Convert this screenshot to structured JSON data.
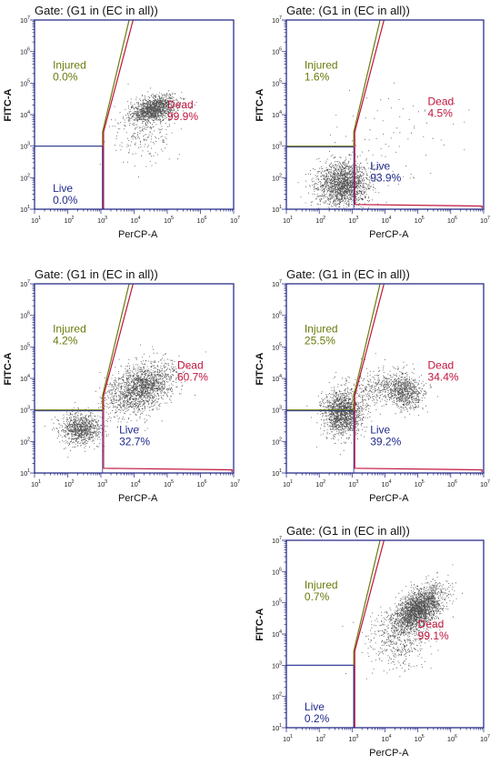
{
  "chart_data": [
    {
      "type": "scatter",
      "title": "Gate: (G1 in (EC in all))",
      "xlabel": "PerCP-A",
      "ylabel": "FITC-A",
      "x_scale": "log",
      "y_scale": "log",
      "xlim": [
        10,
        10000000
      ],
      "ylim": [
        10,
        10000000
      ],
      "tick_exponents": [
        1,
        2,
        3,
        4,
        5,
        6,
        7
      ],
      "tick_base": "10",
      "gate_style": "high-live",
      "regions": [
        {
          "name": "Injured",
          "percent": "0.0%",
          "color": "#6b7a0c"
        },
        {
          "name": "Dead",
          "percent": "99.9%",
          "color": "#c0143c"
        },
        {
          "name": "Live",
          "percent": "0.0%",
          "color": "#1f2a8c"
        }
      ],
      "clusters": [
        {
          "cx": 4.6,
          "cy": 4.2,
          "sx": 0.35,
          "sy": 0.18,
          "rot": 0.35,
          "n": 1300
        },
        {
          "cx": 4.3,
          "cy": 3.5,
          "sx": 0.45,
          "sy": 0.45,
          "rot": 0.0,
          "n": 250
        }
      ]
    },
    {
      "type": "scatter",
      "title": "Gate: (G1 in (EC in all))",
      "xlabel": "PerCP-A",
      "ylabel": "FITC-A",
      "x_scale": "log",
      "y_scale": "log",
      "xlim": [
        10,
        10000000
      ],
      "ylim": [
        10,
        10000000
      ],
      "tick_exponents": [
        1,
        2,
        3,
        4,
        5,
        6,
        7
      ],
      "tick_base": "10",
      "gate_style": "low-live",
      "regions": [
        {
          "name": "Injured",
          "percent": "1.6%",
          "color": "#6b7a0c"
        },
        {
          "name": "Dead",
          "percent": "4.5%",
          "color": "#c0143c"
        },
        {
          "name": "Live",
          "percent": "93.9%",
          "color": "#1f2a8c"
        }
      ],
      "clusters": [
        {
          "cx": 2.7,
          "cy": 1.8,
          "sx": 0.4,
          "sy": 0.35,
          "rot": 0.2,
          "n": 1800
        },
        {
          "cx": 4.2,
          "cy": 3.2,
          "sx": 1.0,
          "sy": 1.0,
          "rot": 0.0,
          "n": 90
        }
      ]
    },
    {
      "type": "scatter",
      "title": "Gate: (G1 in (EC in all))",
      "xlabel": "PerCP-A",
      "ylabel": "FITC-A",
      "x_scale": "log",
      "y_scale": "log",
      "xlim": [
        10,
        10000000
      ],
      "ylim": [
        10,
        10000000
      ],
      "tick_exponents": [
        1,
        2,
        3,
        4,
        5,
        6,
        7
      ],
      "tick_base": "10",
      "gate_style": "low-live",
      "regions": [
        {
          "name": "Injured",
          "percent": "4.2%",
          "color": "#6b7a0c"
        },
        {
          "name": "Dead",
          "percent": "60.7%",
          "color": "#c0143c"
        },
        {
          "name": "Live",
          "percent": "32.7%",
          "color": "#1f2a8c"
        }
      ],
      "clusters": [
        {
          "cx": 4.2,
          "cy": 3.7,
          "sx": 0.55,
          "sy": 0.35,
          "rot": 0.6,
          "n": 1800
        },
        {
          "cx": 2.4,
          "cy": 2.4,
          "sx": 0.3,
          "sy": 0.25,
          "rot": 0.0,
          "n": 900
        }
      ]
    },
    {
      "type": "scatter",
      "title": "Gate: (G1 in (EC in all))",
      "xlabel": "PerCP-A",
      "ylabel": "FITC-A",
      "x_scale": "log",
      "y_scale": "log",
      "xlim": [
        10,
        10000000
      ],
      "ylim": [
        10,
        10000000
      ],
      "tick_exponents": [
        1,
        2,
        3,
        4,
        5,
        6,
        7
      ],
      "tick_base": "10",
      "gate_style": "low-live",
      "regions": [
        {
          "name": "Injured",
          "percent": "25.5%",
          "color": "#6b7a0c"
        },
        {
          "name": "Dead",
          "percent": "34.4%",
          "color": "#c0143c"
        },
        {
          "name": "Live",
          "percent": "39.2%",
          "color": "#1f2a8c"
        }
      ],
      "clusters": [
        {
          "cx": 2.7,
          "cy": 2.9,
          "sx": 0.3,
          "sy": 0.35,
          "rot": 0.0,
          "n": 1500
        },
        {
          "cx": 4.6,
          "cy": 3.6,
          "sx": 0.25,
          "sy": 0.3,
          "rot": 0.6,
          "n": 700
        },
        {
          "cx": 3.8,
          "cy": 3.7,
          "sx": 0.5,
          "sy": 0.3,
          "rot": 0.0,
          "n": 400
        }
      ]
    },
    {
      "type": "scatter",
      "title": "Gate: (G1 in (EC in all))",
      "xlabel": "PerCP-A",
      "ylabel": "FITC-A",
      "x_scale": "log",
      "y_scale": "log",
      "xlim": [
        10,
        10000000
      ],
      "ylim": [
        10,
        10000000
      ],
      "tick_exponents": [
        1,
        2,
        3,
        4,
        5,
        6,
        7
      ],
      "tick_base": "10",
      "gate_style": "high-live",
      "regions": [
        {
          "name": "Injured",
          "percent": "0.7%",
          "color": "#6b7a0c"
        },
        {
          "name": "Dead",
          "percent": "99.1%",
          "color": "#c0143c"
        },
        {
          "name": "Live",
          "percent": "0.2%",
          "color": "#1f2a8c"
        }
      ],
      "clusters": [
        {
          "cx": 5.0,
          "cy": 4.8,
          "sx": 0.45,
          "sy": 0.25,
          "rot": 0.75,
          "n": 2200
        },
        {
          "cx": 4.4,
          "cy": 3.8,
          "sx": 0.5,
          "sy": 0.45,
          "rot": 0.5,
          "n": 450
        }
      ]
    }
  ]
}
